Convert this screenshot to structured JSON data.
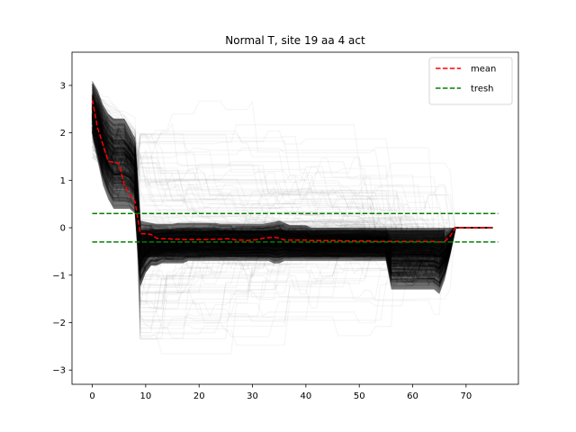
{
  "chart_data": {
    "type": "line",
    "title": "Normal T, site 19 aa 4 act",
    "xlabel": "",
    "ylabel": "",
    "xlim": [
      -3.8,
      79.8
    ],
    "ylim": [
      -3.3,
      3.7
    ],
    "xticks": [
      0,
      10,
      20,
      30,
      40,
      50,
      60,
      70
    ],
    "yticks": [
      -3,
      -2,
      -1,
      0,
      1,
      2,
      3
    ],
    "grid": false,
    "legend_position": "top-right",
    "series": [
      {
        "name": "mean",
        "color": "#ff0000",
        "style": "dashed",
        "x": [
          0,
          1,
          2,
          3,
          4,
          5,
          6,
          7,
          8,
          9,
          10,
          11,
          12,
          13,
          14,
          15,
          16,
          17,
          18,
          19,
          20,
          21,
          22,
          23,
          24,
          25,
          26,
          27,
          28,
          29,
          30,
          31,
          32,
          33,
          34,
          35,
          36,
          37,
          38,
          39,
          40,
          41,
          42,
          43,
          44,
          45,
          46,
          47,
          48,
          49,
          50,
          51,
          52,
          53,
          54,
          55,
          56,
          57,
          58,
          59,
          60,
          61,
          62,
          63,
          64,
          65,
          66,
          67,
          68,
          69,
          70,
          71,
          72,
          73,
          74,
          75
        ],
        "y": [
          2.7,
          2.1,
          1.75,
          1.4,
          1.38,
          1.35,
          0.9,
          0.7,
          0.55,
          -0.12,
          -0.13,
          -0.14,
          -0.22,
          -0.23,
          -0.23,
          -0.24,
          -0.24,
          -0.25,
          -0.25,
          -0.25,
          -0.25,
          -0.25,
          -0.25,
          -0.24,
          -0.24,
          -0.23,
          -0.24,
          -0.26,
          -0.26,
          -0.27,
          -0.26,
          -0.25,
          -0.22,
          -0.21,
          -0.2,
          -0.22,
          -0.26,
          -0.26,
          -0.26,
          -0.26,
          -0.26,
          -0.27,
          -0.27,
          -0.27,
          -0.27,
          -0.27,
          -0.27,
          -0.28,
          -0.28,
          -0.28,
          -0.28,
          -0.28,
          -0.28,
          -0.29,
          -0.29,
          -0.29,
          -0.29,
          -0.29,
          -0.29,
          -0.29,
          -0.29,
          -0.29,
          -0.29,
          -0.29,
          -0.29,
          -0.3,
          -0.29,
          -0.18,
          0.0,
          0.0,
          0.0,
          0.0,
          0.0,
          0.0,
          0.0,
          0.0
        ]
      },
      {
        "name": "tresh",
        "color": "#008000",
        "style": "dashed",
        "x": [
          0,
          76
        ],
        "y": [
          0.3,
          0.3
        ]
      },
      {
        "name": "",
        "color": "#008000",
        "style": "dashed",
        "x": [
          0,
          76
        ],
        "y": [
          -0.3,
          -0.3
        ]
      }
    ],
    "trajectory_bundle": {
      "color": "#000000",
      "description": "many semi-transparent black per-run trajectories",
      "band_upper": [
        3.1,
        2.9,
        2.6,
        2.4,
        2.3,
        2.3,
        2.3,
        2.1,
        1.9,
        0.15,
        0.12,
        0.1,
        0.08,
        0.08,
        0.08,
        0.08,
        0.1,
        0.1,
        0.1,
        0.1,
        0.1,
        0.1,
        0.1,
        0.1,
        0.08,
        0.08,
        0.08,
        0.08,
        0.08,
        0.08,
        0.08,
        0.08,
        0.08,
        0.1,
        0.12,
        0.15,
        0.1,
        0.05,
        0.05,
        0.05,
        0.05,
        0.0,
        0.0,
        0.0,
        0.0,
        0.0,
        0.0,
        0.0,
        0.0,
        0.0,
        0.0,
        0.0,
        0.0,
        0.0,
        0.0,
        0.0,
        0.0,
        0.0,
        0.0,
        0.0,
        0.0,
        0.0,
        0.0,
        0.0,
        0.0,
        0.0,
        0.0,
        0.0,
        0.0
      ],
      "band_lower": [
        1.9,
        1.4,
        0.9,
        0.6,
        0.4,
        0.4,
        0.4,
        0.4,
        0.3,
        -1.25,
        -0.95,
        -0.8,
        -0.8,
        -0.75,
        -0.75,
        -0.75,
        -0.75,
        -0.75,
        -0.7,
        -0.7,
        -0.7,
        -0.7,
        -0.7,
        -0.7,
        -0.7,
        -0.7,
        -0.7,
        -0.7,
        -0.7,
        -0.7,
        -0.7,
        -0.7,
        -0.7,
        -0.7,
        -0.75,
        -0.75,
        -0.7,
        -0.7,
        -0.7,
        -0.7,
        -0.7,
        -0.7,
        -0.7,
        -0.7,
        -0.7,
        -0.7,
        -0.7,
        -0.7,
        -0.7,
        -0.7,
        -0.7,
        -0.7,
        -0.7,
        -0.7,
        -0.7,
        -0.7,
        -1.3,
        -1.3,
        -1.3,
        -1.3,
        -1.3,
        -1.3,
        -1.3,
        -1.3,
        -1.3,
        -1.4,
        -1.1,
        -0.6,
        0.0
      ]
    }
  }
}
